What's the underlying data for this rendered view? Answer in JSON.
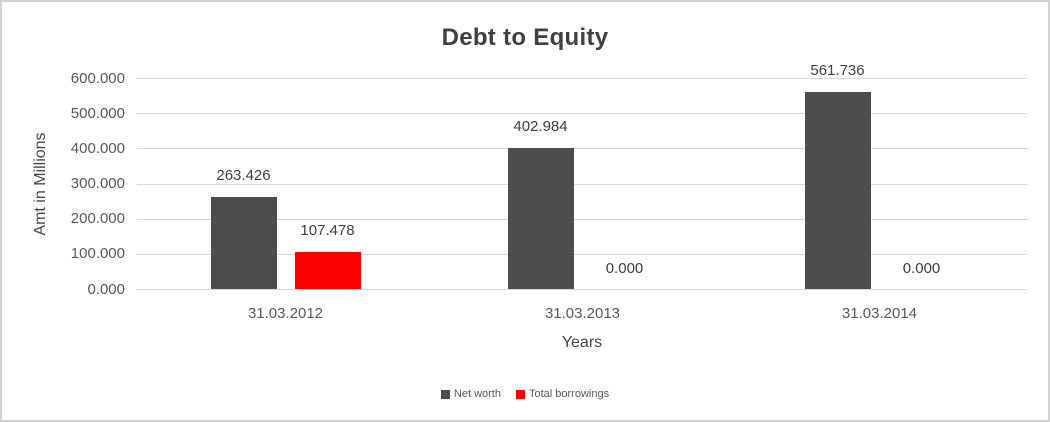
{
  "chart_data": {
    "type": "bar",
    "title": "Debt to Equity",
    "xlabel": "Years",
    "ylabel": "Amt in Millions",
    "categories": [
      "31.03.2012",
      "31.03.2013",
      "31.03.2014"
    ],
    "series": [
      {
        "name": "Net worth",
        "color": "#4d4d4d",
        "values": [
          263.426,
          402.984,
          561.736
        ],
        "labels": [
          "263.426",
          "402.984",
          "561.736"
        ]
      },
      {
        "name": "Total borrowings",
        "color": "#ff0000",
        "values": [
          107.478,
          0,
          0
        ],
        "labels": [
          "107.478",
          "0.000",
          "0.000"
        ]
      }
    ],
    "y_axis": {
      "min": 0,
      "max": 600,
      "step": 100,
      "tick_labels": [
        "0.000",
        "100.000",
        "200.000",
        "300.000",
        "400.000",
        "500.000",
        "600.000"
      ]
    },
    "grid": true,
    "gridline_color": "#d9d9d9",
    "legend_position": "bottom",
    "colors": {
      "title_text": "#404040",
      "axis_text": "#595959",
      "data_label_text": "#404040",
      "frame_border": "#d2d2d2",
      "background": "#ffffff"
    }
  }
}
